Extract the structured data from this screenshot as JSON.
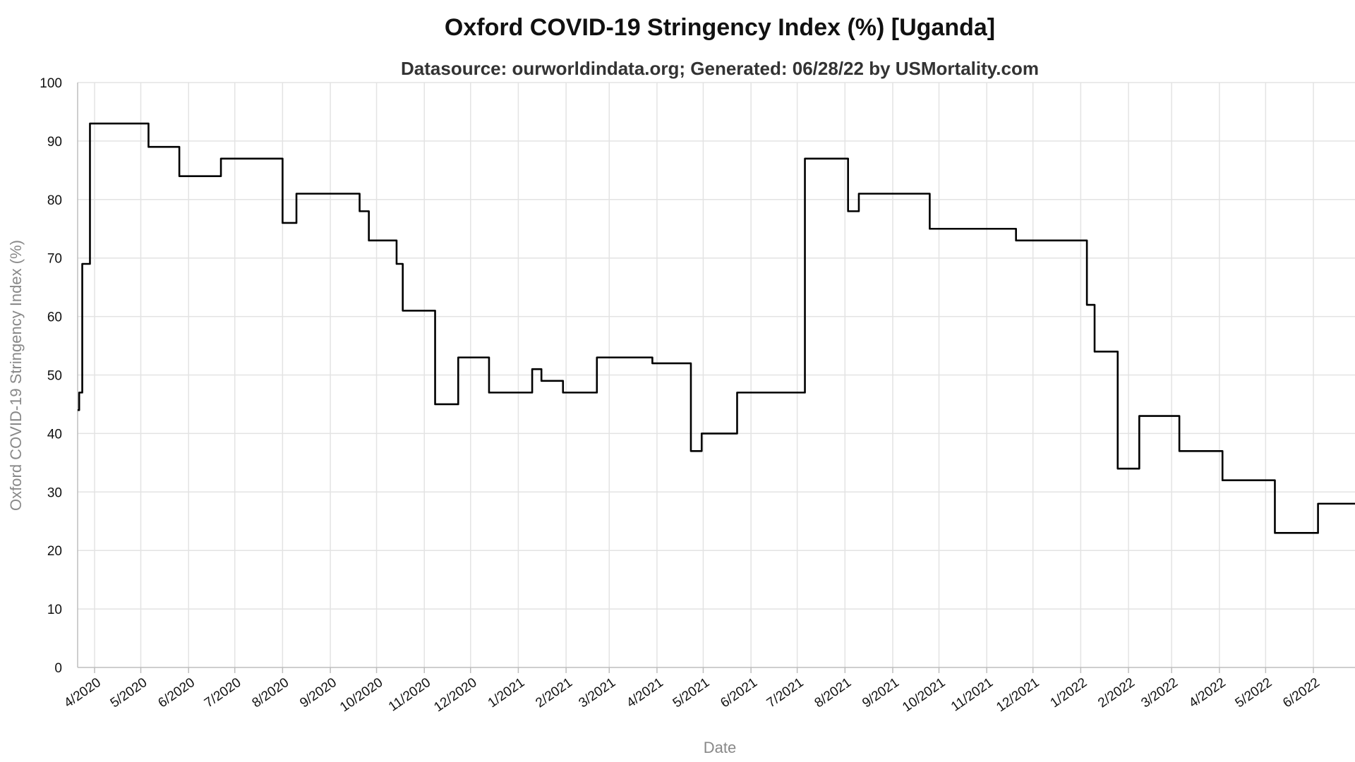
{
  "chart_data": {
    "type": "line",
    "title": "Oxford COVID-19 Stringency Index (%) [Uganda]",
    "subtitle": "Datasource: ourworldindata.org; Generated: 06/28/22 by USMortality.com",
    "xlabel": "Date",
    "ylabel": "Oxford COVID-19 Stringency Index (%)",
    "ylim": [
      0,
      100
    ],
    "yticks": [
      0,
      10,
      20,
      30,
      40,
      50,
      60,
      70,
      80,
      90,
      100
    ],
    "xlim": [
      "2020-03-21",
      "2022-06-28"
    ],
    "xtick_dates": [
      "2020-04-01",
      "2020-05-01",
      "2020-06-01",
      "2020-07-01",
      "2020-08-01",
      "2020-09-01",
      "2020-10-01",
      "2020-11-01",
      "2020-12-01",
      "2021-01-01",
      "2021-02-01",
      "2021-03-01",
      "2021-04-01",
      "2021-05-01",
      "2021-06-01",
      "2021-07-01",
      "2021-08-01",
      "2021-09-01",
      "2021-10-01",
      "2021-11-01",
      "2021-12-01",
      "2022-01-01",
      "2022-02-01",
      "2022-03-01",
      "2022-04-01",
      "2022-05-01",
      "2022-06-01"
    ],
    "xtick_labels": [
      "4/2020",
      "5/2020",
      "6/2020",
      "7/2020",
      "8/2020",
      "9/2020",
      "10/2020",
      "11/2020",
      "12/2020",
      "1/2021",
      "2/2021",
      "3/2021",
      "4/2021",
      "5/2021",
      "6/2021",
      "7/2021",
      "8/2021",
      "9/2021",
      "10/2021",
      "11/2021",
      "12/2021",
      "1/2022",
      "2/2022",
      "3/2022",
      "4/2022",
      "5/2022",
      "6/2022"
    ],
    "grid": true,
    "legend": "none",
    "colors": {
      "line": "#000000",
      "grid": "#e3e3e3",
      "axis_title": "#888888"
    },
    "series": [
      {
        "step": true,
        "points": [
          [
            "2020-03-21",
            44
          ],
          [
            "2020-03-22",
            47
          ],
          [
            "2020-03-24",
            69
          ],
          [
            "2020-03-29",
            93
          ],
          [
            "2020-05-06",
            89
          ],
          [
            "2020-05-26",
            84
          ],
          [
            "2020-06-22",
            87
          ],
          [
            "2020-08-01",
            76
          ],
          [
            "2020-08-10",
            81
          ],
          [
            "2020-09-20",
            78
          ],
          [
            "2020-09-26",
            73
          ],
          [
            "2020-10-14",
            69
          ],
          [
            "2020-10-18",
            61
          ],
          [
            "2020-11-08",
            45
          ],
          [
            "2020-11-23",
            53
          ],
          [
            "2020-12-13",
            47
          ],
          [
            "2021-01-10",
            51
          ],
          [
            "2021-01-16",
            49
          ],
          [
            "2021-01-30",
            47
          ],
          [
            "2021-02-21",
            53
          ],
          [
            "2021-03-29",
            52
          ],
          [
            "2021-04-23",
            37
          ],
          [
            "2021-04-30",
            40
          ],
          [
            "2021-05-23",
            47
          ],
          [
            "2021-07-06",
            87
          ],
          [
            "2021-08-03",
            78
          ],
          [
            "2021-08-10",
            81
          ],
          [
            "2021-09-25",
            75
          ],
          [
            "2021-11-20",
            73
          ],
          [
            "2022-01-05",
            62
          ],
          [
            "2022-01-10",
            54
          ],
          [
            "2022-01-25",
            34
          ],
          [
            "2022-02-08",
            43
          ],
          [
            "2022-03-06",
            37
          ],
          [
            "2022-04-03",
            32
          ],
          [
            "2022-05-07",
            23
          ],
          [
            "2022-06-04",
            28
          ],
          [
            "2022-06-28",
            28
          ]
        ]
      }
    ]
  }
}
